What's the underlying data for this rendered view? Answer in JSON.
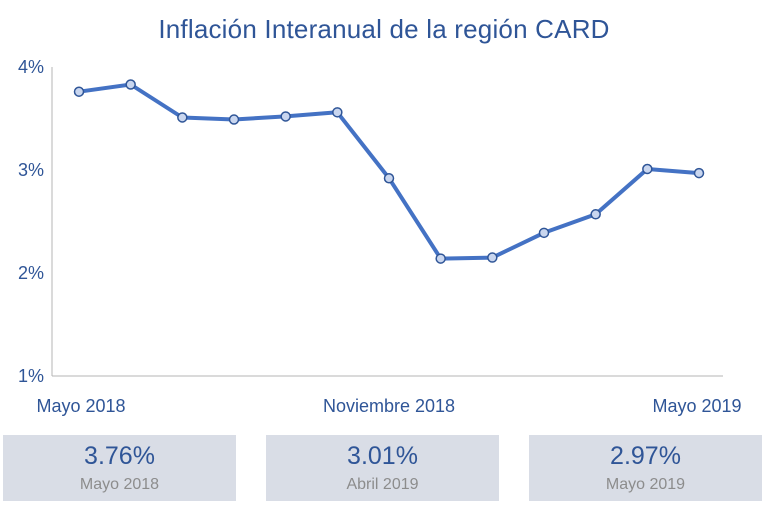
{
  "title": "Inflación Interanual de la región CARD",
  "chart_data": {
    "type": "line",
    "title": "Inflación Interanual de la región CARD",
    "ylim": [
      1,
      4
    ],
    "y_ticks": [
      {
        "value": 4,
        "label": "4%"
      },
      {
        "value": 3,
        "label": "3%"
      },
      {
        "value": 2,
        "label": "2%"
      },
      {
        "value": 1,
        "label": "1%"
      }
    ],
    "x_tick_labels": [
      {
        "index": 0,
        "label": "Mayo 2018"
      },
      {
        "index": 6,
        "label": "Noviembre 2018"
      },
      {
        "index": 12,
        "label": "Mayo 2019"
      }
    ],
    "grid": false,
    "color": "#4472c4",
    "series": [
      {
        "values": [
          3.76,
          3.83,
          3.51,
          3.49,
          3.52,
          3.56,
          2.92,
          2.14,
          2.15,
          2.39,
          2.57,
          3.01,
          2.97
        ]
      }
    ]
  },
  "cards": [
    {
      "value": "3.76%",
      "label": "Mayo 2018"
    },
    {
      "value": "3.01%",
      "label": "Abril 2019"
    },
    {
      "value": "2.97%",
      "label": "Mayo 2019"
    }
  ]
}
